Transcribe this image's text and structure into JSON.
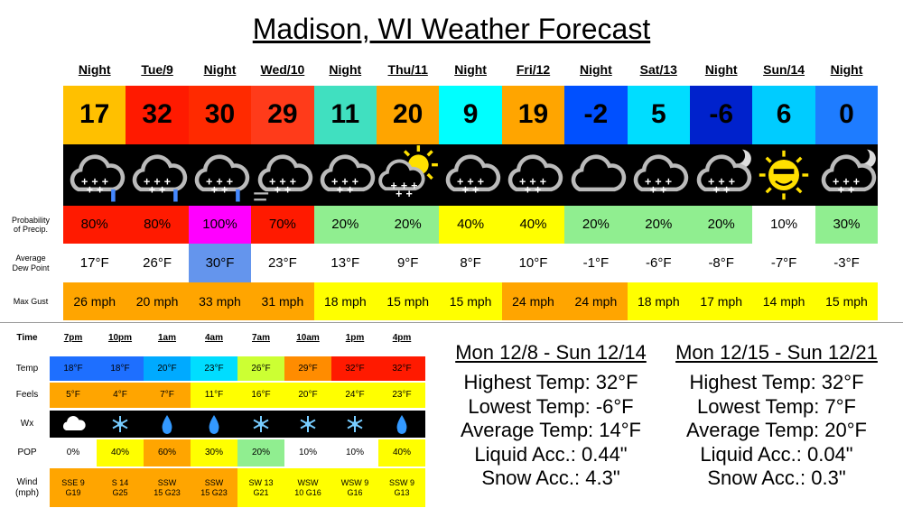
{
  "title": "Madison, WI Weather Forecast",
  "forecast": {
    "row_labels": {
      "precip": [
        "Probability",
        "of Precip."
      ],
      "dew": [
        "Average",
        "Dew Point"
      ],
      "gust": "Max Gust"
    },
    "periods": [
      "Night",
      "Tue/9",
      "Night",
      "Wed/10",
      "Night",
      "Thu/11",
      "Night",
      "Fri/12",
      "Night",
      "Sat/13",
      "Night",
      "Sun/14",
      "Night"
    ],
    "temps": [
      17,
      32,
      30,
      29,
      11,
      20,
      9,
      19,
      -2,
      5,
      -6,
      6,
      0
    ],
    "precip": [
      "80%",
      "80%",
      "100%",
      "70%",
      "20%",
      "20%",
      "40%",
      "40%",
      "20%",
      "20%",
      "20%",
      "10%",
      "30%"
    ],
    "dew_points": [
      "17°F",
      "26°F",
      "30°F",
      "23°F",
      "13°F",
      "9°F",
      "8°F",
      "10°F",
      "-1°F",
      "-6°F",
      "-8°F",
      "-7°F",
      "-3°F"
    ],
    "gusts": [
      "26 mph",
      "20 mph",
      "33 mph",
      "31 mph",
      "18 mph",
      "15 mph",
      "15 mph",
      "24 mph",
      "24 mph",
      "18 mph",
      "17 mph",
      "14 mph",
      "15 mph"
    ]
  },
  "hourly": {
    "row_labels": [
      "Time",
      "Temp",
      "Feels",
      "Wx",
      "POP",
      [
        "Wind",
        "(mph)"
      ]
    ],
    "times": [
      "7pm",
      "10pm",
      "1am",
      "4am",
      "7am",
      "10am",
      "1pm",
      "4pm"
    ],
    "temps": [
      "18°F",
      "18°F",
      "20°F",
      "23°F",
      "26°F",
      "29°F",
      "32°F",
      "32°F"
    ],
    "feels": [
      "5°F",
      "4°F",
      "7°F",
      "11°F",
      "16°F",
      "20°F",
      "24°F",
      "23°F"
    ],
    "pop": [
      "0%",
      "40%",
      "60%",
      "30%",
      "20%",
      "10%",
      "10%",
      "40%"
    ],
    "wind": [
      [
        "SSE 9",
        "G19"
      ],
      [
        "S 14",
        "G25"
      ],
      [
        "SSW",
        "15 G23"
      ],
      [
        "SSW",
        "15 G23"
      ],
      [
        "SW 13",
        "G21"
      ],
      [
        "WSW",
        "10 G16"
      ],
      [
        "WSW 9",
        "G16"
      ],
      [
        "SSW 9",
        "G13"
      ]
    ]
  },
  "summaries": [
    {
      "heading": "Mon 12/8 - Sun 12/14",
      "lines": [
        "Highest Temp: 32°F",
        "Lowest Temp: -6°F",
        "Average Temp: 14°F",
        "Liquid Acc.: 0.44\"",
        "Snow Acc.: 4.3\""
      ]
    },
    {
      "heading": "Mon 12/15 - Sun 12/21",
      "lines": [
        "Highest Temp: 32°F",
        "Lowest Temp: 7°F",
        "Average Temp: 20°F",
        "Liquid Acc.: 0.04\"",
        "Snow Acc.: 0.3\""
      ]
    }
  ]
}
